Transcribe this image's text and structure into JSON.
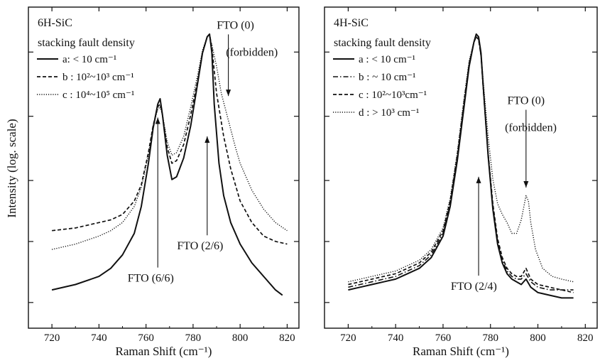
{
  "figure": {
    "ylabel": "Intensity (log. scale)"
  },
  "chart_data": [
    {
      "type": "line",
      "title": "6H-SiC",
      "subtitle": "stacking fault density",
      "xlabel": "Raman Shift (cm⁻¹)",
      "ylabel": "Intensity (log. scale)",
      "xlim": [
        710,
        825
      ],
      "ylim": [
        0,
        1
      ],
      "y_scale": "log",
      "x_ticks": [
        720,
        740,
        760,
        780,
        800,
        820
      ],
      "grid": false,
      "legend_position": "top-left",
      "series": [
        {
          "name": "a:  < 10 cm⁻¹",
          "style": "solid",
          "x": [
            720,
            730,
            740,
            745,
            750,
            755,
            758,
            761,
            763,
            765,
            766,
            767,
            769,
            771,
            773,
            776,
            779,
            782,
            784,
            786,
            787,
            788,
            789,
            791,
            793,
            796,
            800,
            805,
            810,
            815,
            818
          ],
          "y": [
            0.05,
            0.07,
            0.1,
            0.13,
            0.18,
            0.26,
            0.36,
            0.52,
            0.65,
            0.74,
            0.76,
            0.7,
            0.55,
            0.46,
            0.47,
            0.54,
            0.66,
            0.82,
            0.93,
            0.99,
            1.0,
            0.93,
            0.74,
            0.52,
            0.4,
            0.3,
            0.22,
            0.15,
            0.1,
            0.05,
            0.03
          ]
        },
        {
          "name": "b : 10²~10³ cm⁻¹",
          "style": "dashed",
          "x": [
            720,
            730,
            740,
            745,
            750,
            755,
            758,
            761,
            763,
            765,
            766,
            767,
            769,
            771,
            773,
            776,
            779,
            782,
            784,
            786,
            787,
            788,
            790,
            793,
            796,
            800,
            805,
            810,
            815,
            820
          ],
          "y": [
            0.27,
            0.28,
            0.3,
            0.31,
            0.33,
            0.38,
            0.44,
            0.56,
            0.66,
            0.73,
            0.74,
            0.7,
            0.58,
            0.52,
            0.53,
            0.59,
            0.7,
            0.83,
            0.93,
            0.99,
            1.0,
            0.95,
            0.78,
            0.62,
            0.5,
            0.38,
            0.3,
            0.25,
            0.23,
            0.22
          ]
        },
        {
          "name": "c : 10⁴~10⁵ cm⁻¹",
          "style": "dotted",
          "x": [
            720,
            730,
            740,
            745,
            750,
            755,
            758,
            761,
            763,
            765,
            766,
            767,
            769,
            771,
            773,
            776,
            779,
            782,
            784,
            786,
            787,
            788,
            790,
            792,
            795,
            798,
            800,
            805,
            810,
            815,
            820
          ],
          "y": [
            0.2,
            0.22,
            0.25,
            0.27,
            0.3,
            0.36,
            0.43,
            0.55,
            0.66,
            0.72,
            0.73,
            0.7,
            0.6,
            0.55,
            0.56,
            0.62,
            0.73,
            0.85,
            0.94,
            0.99,
            0.99,
            0.96,
            0.88,
            0.78,
            0.68,
            0.58,
            0.52,
            0.42,
            0.35,
            0.3,
            0.27
          ]
        }
      ],
      "annotations": [
        {
          "text": "FTO (0)",
          "x": 798,
          "y": 1.02,
          "arrow_x": 795,
          "arrow_y": 0.77
        },
        {
          "text": "(forbidden)",
          "x": 805,
          "y": 0.92
        },
        {
          "text": "FTO (2/6)",
          "x": 783,
          "y": 0.2,
          "arrow_x": 786,
          "arrow_y": 0.62
        },
        {
          "text": "FTO (6/6)",
          "x": 762,
          "y": 0.08,
          "arrow_x": 765,
          "arrow_y": 0.69
        }
      ]
    },
    {
      "type": "line",
      "title": "4H-SiC",
      "subtitle": "stacking fault density",
      "xlabel": "Raman Shift (cm⁻¹)",
      "ylabel": "",
      "xlim": [
        710,
        825
      ],
      "ylim": [
        0,
        1
      ],
      "y_scale": "log",
      "x_ticks": [
        720,
        740,
        760,
        780,
        800,
        820
      ],
      "grid": false,
      "legend_position": "top-left",
      "series": [
        {
          "name": "a :  < 10 cm⁻¹",
          "style": "solid",
          "x": [
            720,
            725,
            730,
            735,
            740,
            745,
            750,
            755,
            760,
            763,
            766,
            769,
            771,
            773,
            774,
            775,
            776,
            777,
            779,
            781,
            783,
            785,
            787,
            789,
            791,
            793,
            795,
            797,
            800,
            805,
            810,
            815
          ],
          "y": [
            0.05,
            0.06,
            0.07,
            0.08,
            0.09,
            0.11,
            0.13,
            0.17,
            0.25,
            0.36,
            0.53,
            0.74,
            0.88,
            0.97,
            1.0,
            0.99,
            0.93,
            0.8,
            0.55,
            0.35,
            0.22,
            0.15,
            0.11,
            0.09,
            0.08,
            0.07,
            0.09,
            0.06,
            0.04,
            0.03,
            0.02,
            0.02
          ]
        },
        {
          "name": "b :  ~ 10 cm⁻¹",
          "style": "dashdot",
          "x": [
            720,
            725,
            730,
            735,
            740,
            745,
            750,
            755,
            760,
            763,
            766,
            769,
            771,
            773,
            774,
            775,
            776,
            777,
            779,
            781,
            783,
            785,
            787,
            789,
            791,
            793,
            795,
            797,
            800,
            805,
            810,
            815
          ],
          "y": [
            0.06,
            0.07,
            0.08,
            0.09,
            0.1,
            0.12,
            0.14,
            0.18,
            0.26,
            0.37,
            0.54,
            0.75,
            0.89,
            0.97,
            0.99,
            0.98,
            0.92,
            0.79,
            0.55,
            0.36,
            0.23,
            0.16,
            0.12,
            0.1,
            0.09,
            0.09,
            0.11,
            0.08,
            0.06,
            0.05,
            0.05,
            0.05
          ]
        },
        {
          "name": "c : 10²~10³cm⁻¹",
          "style": "dashed",
          "x": [
            720,
            725,
            730,
            735,
            740,
            745,
            750,
            755,
            760,
            763,
            766,
            769,
            771,
            773,
            774,
            775,
            776,
            777,
            779,
            781,
            783,
            785,
            787,
            789,
            791,
            793,
            795,
            797,
            800,
            805,
            810,
            815
          ],
          "y": [
            0.07,
            0.08,
            0.09,
            0.1,
            0.11,
            0.13,
            0.15,
            0.19,
            0.27,
            0.38,
            0.55,
            0.76,
            0.89,
            0.97,
            0.99,
            0.98,
            0.92,
            0.8,
            0.56,
            0.37,
            0.24,
            0.17,
            0.13,
            0.11,
            0.1,
            0.1,
            0.13,
            0.09,
            0.07,
            0.06,
            0.05,
            0.04
          ]
        },
        {
          "name": "d :  > 10³ cm⁻¹",
          "style": "dotted",
          "x": [
            720,
            725,
            730,
            735,
            740,
            745,
            750,
            755,
            760,
            763,
            766,
            769,
            771,
            773,
            774,
            775,
            776,
            777,
            779,
            781,
            783,
            785,
            787,
            789,
            791,
            793,
            795,
            796,
            797,
            799,
            802,
            806,
            810,
            815
          ],
          "y": [
            0.08,
            0.09,
            0.1,
            0.11,
            0.12,
            0.14,
            0.16,
            0.2,
            0.28,
            0.39,
            0.56,
            0.77,
            0.9,
            0.97,
            0.99,
            0.98,
            0.93,
            0.82,
            0.62,
            0.46,
            0.37,
            0.33,
            0.3,
            0.26,
            0.26,
            0.31,
            0.4,
            0.38,
            0.3,
            0.2,
            0.13,
            0.1,
            0.09,
            0.08
          ]
        }
      ],
      "annotations": [
        {
          "text": "FTO (0)",
          "x": 795,
          "y": 0.74,
          "arrow_x": 795,
          "arrow_y": 0.43
        },
        {
          "text": "(forbidden)",
          "x": 797,
          "y": 0.64
        },
        {
          "text": "FTO (2/4)",
          "x": 773,
          "y": 0.05,
          "arrow_x": 775,
          "arrow_y": 0.47
        }
      ]
    }
  ]
}
